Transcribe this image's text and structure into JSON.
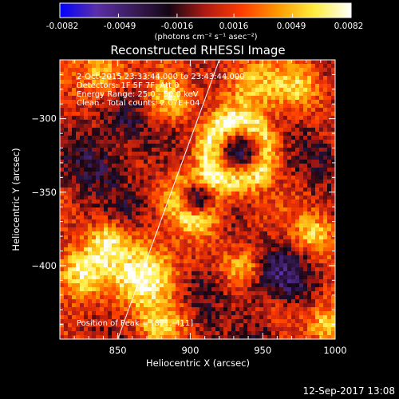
{
  "colorbar": {
    "ticks": [
      "-0.0082",
      "-0.0049",
      "-0.0016",
      "0.0016",
      "0.0049",
      "0.0082"
    ],
    "tick_values": [
      -0.0082,
      -0.0049,
      -0.0016,
      0.0016,
      0.0049,
      0.0082
    ],
    "range": [
      -0.0082,
      0.0082
    ],
    "unit_label": "(photons cm⁻² s⁻¹ asec⁻²)",
    "colors": [
      "#0000ff",
      "#5a2fa8",
      "#3a1c5a",
      "#140614",
      "#b01a12",
      "#ff3d00",
      "#ff9a00",
      "#ffee40",
      "#ffffff"
    ]
  },
  "chart_data": {
    "type": "heatmap",
    "title": "Reconstructed RHESSI Image",
    "xlabel": "Heliocentric X (arcsec)",
    "ylabel": "Heliocentric Y (arcsec)",
    "xticks": [
      850,
      900,
      950,
      1000
    ],
    "yticks": [
      -300,
      -350,
      -400
    ],
    "xlim": [
      810,
      1000
    ],
    "ylim": [
      -450,
      -260
    ],
    "annotations": [
      "2-Oct-2015 23:33:44.000 to 23:43:44.000",
      "Detectors: 1F 5F 7F, Att 0",
      "Energy Range: 25.0 - 50.0 keV",
      "Clean - Total counts: 2.07E+04"
    ],
    "peak_label": "Position of Peak = [871,-411]",
    "peak": [
      871,
      -411
    ],
    "limb_line": [
      [
        850,
        -450
      ],
      [
        920,
        -260
      ]
    ],
    "features": [
      {
        "type": "bright",
        "x": 870,
        "y": -408,
        "amp": 0.0082,
        "sigma": 15
      },
      {
        "type": "bright",
        "x": 824,
        "y": -405,
        "amp": 0.0062,
        "sigma": 12
      },
      {
        "type": "bright",
        "x": 843,
        "y": -384,
        "amp": 0.0056,
        "sigma": 10
      },
      {
        "type": "bright",
        "x": 840,
        "y": -270,
        "amp": 0.0052,
        "sigma": 12
      },
      {
        "type": "bright",
        "x": 885,
        "y": -288,
        "amp": 0.0052,
        "sigma": 10
      },
      {
        "type": "bright",
        "x": 940,
        "y": -278,
        "amp": 0.0046,
        "sigma": 14
      },
      {
        "type": "bright",
        "x": 975,
        "y": -278,
        "amp": 0.0044,
        "sigma": 12
      },
      {
        "type": "bright",
        "x": 985,
        "y": -378,
        "amp": 0.0054,
        "sigma": 10
      },
      {
        "type": "bright",
        "x": 995,
        "y": -440,
        "amp": 0.0058,
        "sigma": 10
      },
      {
        "type": "bright",
        "x": 937,
        "y": -402,
        "amp": 0.0044,
        "sigma": 8
      },
      {
        "type": "bright",
        "x": 880,
        "y": -440,
        "amp": 0.004,
        "sigma": 10
      },
      {
        "type": "bright",
        "x": 960,
        "y": -428,
        "amp": 0.0028,
        "sigma": 10
      },
      {
        "type": "bright",
        "x": 905,
        "y": -372,
        "amp": 0.003,
        "sigma": 9
      },
      {
        "type": "ring",
        "x": 933,
        "y": -322,
        "amp": 0.0062,
        "radius": 20,
        "width": 7
      },
      {
        "type": "ring",
        "x": 905,
        "y": -355,
        "amp": 0.0036,
        "radius": 15,
        "width": 6
      },
      {
        "type": "dark",
        "x": 933,
        "y": -322,
        "amp": -0.0042,
        "sigma": 11
      },
      {
        "type": "dark",
        "x": 905,
        "y": -355,
        "amp": -0.0036,
        "sigma": 9
      },
      {
        "type": "dark",
        "x": 832,
        "y": -330,
        "amp": -0.004,
        "sigma": 14
      },
      {
        "type": "dark",
        "x": 965,
        "y": -410,
        "amp": -0.0044,
        "sigma": 16
      },
      {
        "type": "dark",
        "x": 855,
        "y": -300,
        "amp": -0.0036,
        "sigma": 12
      },
      {
        "type": "dark",
        "x": 910,
        "y": -418,
        "amp": -0.003,
        "sigma": 11
      },
      {
        "type": "dark",
        "x": 990,
        "y": -325,
        "amp": -0.003,
        "sigma": 12
      },
      {
        "type": "dark",
        "x": 950,
        "y": -448,
        "amp": -0.0026,
        "sigma": 10
      },
      {
        "type": "dark",
        "x": 860,
        "y": -360,
        "amp": -0.0022,
        "sigma": 10
      }
    ]
  },
  "footer": {
    "timestamp": "12-Sep-2017 13:08"
  }
}
